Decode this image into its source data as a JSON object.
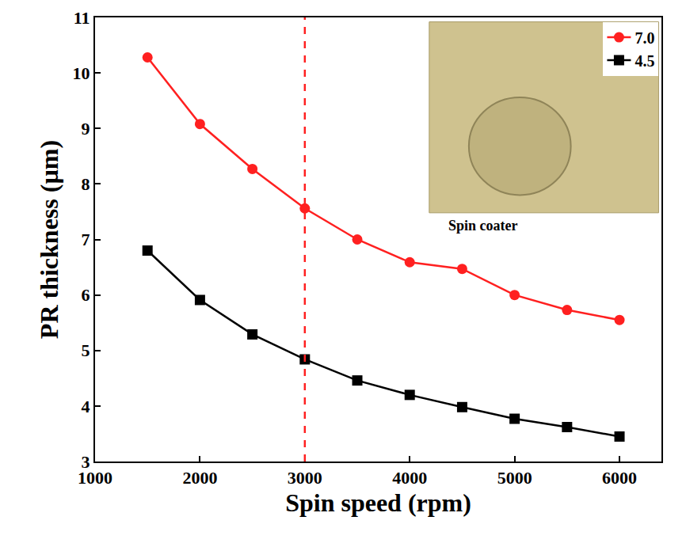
{
  "chart_data": {
    "type": "line",
    "x_label": "Spin speed (rpm)",
    "y_label": "PR thickness (µm)",
    "x": [
      1500,
      2000,
      2500,
      3000,
      3500,
      4000,
      4500,
      5000,
      5500,
      6000
    ],
    "series": [
      {
        "name": "7.0",
        "color": "#ff2020",
        "marker": "circle",
        "line_style": "solid",
        "values": [
          10.28,
          9.08,
          8.27,
          7.56,
          7.0,
          6.59,
          6.47,
          6.0,
          5.73,
          5.55
        ]
      },
      {
        "name": "4.5",
        "color": "#000000",
        "marker": "square",
        "line_style": "solid",
        "values": [
          6.8,
          5.91,
          5.29,
          4.84,
          4.46,
          4.2,
          3.98,
          3.77,
          3.62,
          3.45
        ]
      }
    ],
    "xlim": [
      1000,
      6400
    ],
    "xticks": [
      1000,
      2000,
      3000,
      4000,
      5000,
      6000
    ],
    "ylim": [
      3,
      11
    ],
    "yticks": [
      3,
      4,
      5,
      6,
      7,
      8,
      9,
      10,
      11
    ],
    "vline": {
      "x": 3000,
      "color": "#ff2020",
      "line_style": "dash"
    },
    "annotations": [
      {
        "text": "Spin coater",
        "x": 4700,
        "y": 7.25
      }
    ],
    "legend": "top right",
    "grid": false
  }
}
